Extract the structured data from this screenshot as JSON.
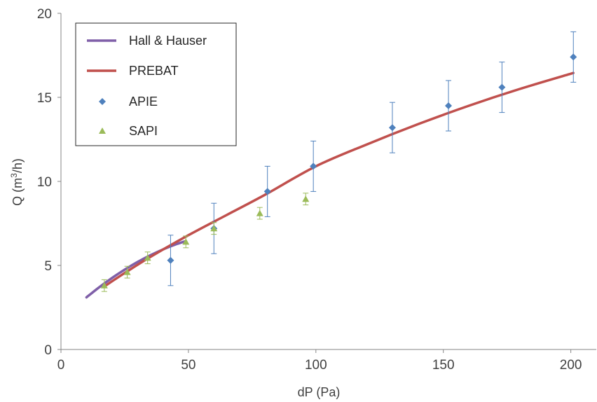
{
  "chart_data": {
    "type": "line",
    "title": "",
    "xlabel": "dP (Pa)",
    "ylabel_main": "Q (m",
    "ylabel_sup": "3",
    "ylabel_end": "/h)",
    "xlim": [
      0,
      210
    ],
    "ylim": [
      0,
      20
    ],
    "x_ticks": [
      "0",
      "50",
      "100",
      "150",
      "200"
    ],
    "y_ticks": [
      "0",
      "5",
      "10",
      "15",
      "20"
    ],
    "grid": false,
    "legend_position": "top-left",
    "series": [
      {
        "name": "Hall & Hauser",
        "kind": "line",
        "color": "#7f5fa8",
        "x": [
          10,
          15,
          20,
          25,
          30,
          35,
          40,
          45,
          49
        ],
        "y": [
          3.1,
          3.7,
          4.25,
          4.75,
          5.2,
          5.6,
          5.95,
          6.25,
          6.45
        ]
      },
      {
        "name": "PREBAT",
        "kind": "line",
        "color": "#c0504d",
        "x": [
          17,
          25,
          35,
          50,
          65,
          80,
          100,
          120,
          140,
          160,
          180,
          201
        ],
        "y": [
          3.75,
          4.55,
          5.5,
          6.8,
          8.0,
          9.2,
          10.9,
          12.2,
          13.4,
          14.5,
          15.5,
          16.45
        ]
      },
      {
        "name": "APIE",
        "kind": "scatter",
        "marker": "diamond",
        "color": "#4f81bd",
        "x": [
          43,
          60,
          81,
          99,
          130,
          152,
          173,
          201
        ],
        "y": [
          5.3,
          7.2,
          9.4,
          10.9,
          13.2,
          14.5,
          15.6,
          17.4
        ],
        "err": [
          1.5,
          1.5,
          1.5,
          1.5,
          1.5,
          1.5,
          1.5,
          1.5
        ]
      },
      {
        "name": "SAPI",
        "kind": "scatter",
        "marker": "triangle",
        "color": "#9bbb59",
        "x": [
          17,
          26,
          34,
          49,
          60,
          78,
          96
        ],
        "y": [
          3.8,
          4.6,
          5.45,
          6.4,
          7.2,
          8.1,
          8.95
        ],
        "err": [
          0.35,
          0.35,
          0.35,
          0.35,
          0.35,
          0.35,
          0.35
        ]
      }
    ]
  }
}
